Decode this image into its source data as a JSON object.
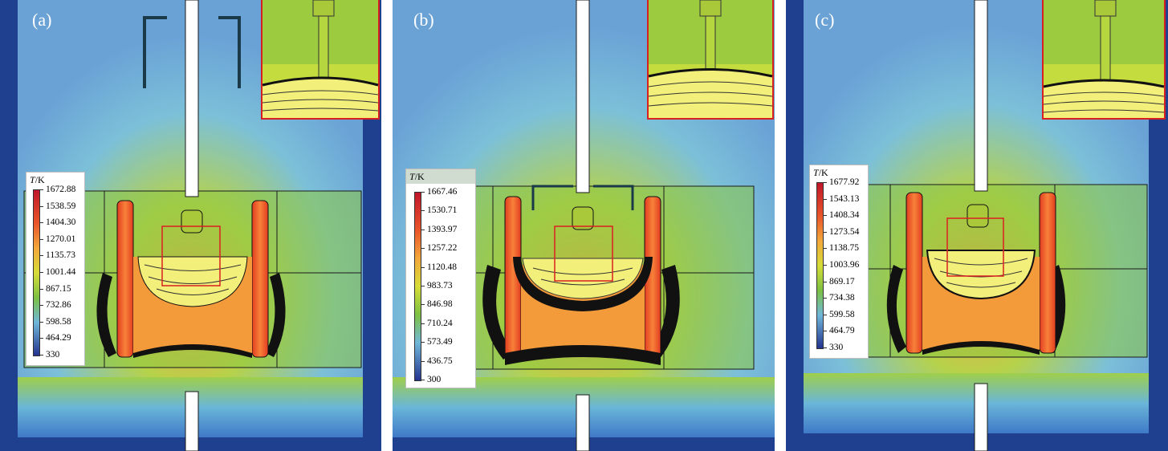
{
  "panels": [
    {
      "label": "(a)",
      "legend": {
        "title_var": "T",
        "title_unit": "/K",
        "values": [
          "1672.88",
          "1538.59",
          "1404.30",
          "1270.01",
          "1135.73",
          "1001.44",
          "867.15",
          "732.86",
          "598.58",
          "464.29",
          "330"
        ]
      }
    },
    {
      "label": "(b)",
      "legend": {
        "title_var": "T",
        "title_unit": "/K",
        "values": [
          "1667.46",
          "1530.71",
          "1393.97",
          "1257.22",
          "1120.48",
          "983.73",
          "846.98",
          "710.24",
          "573.49",
          "436.75",
          "300"
        ]
      }
    },
    {
      "label": "(c)",
      "legend": {
        "title_var": "T",
        "title_unit": "/K",
        "values": [
          "1677.92",
          "1543.13",
          "1408.34",
          "1273.54",
          "1138.75",
          "1003.96",
          "869.17",
          "734.38",
          "599.58",
          "464.79",
          "330"
        ]
      }
    }
  ],
  "colors": {
    "frame": "#1f3f8f",
    "chamber": "#6fa6d8",
    "hot": "#e23b1f",
    "warm": "#f39a3a",
    "mid": "#d8dc3a",
    "cool": "#7cc145",
    "melt": "#f2f07a",
    "highlight": "#d92020"
  }
}
